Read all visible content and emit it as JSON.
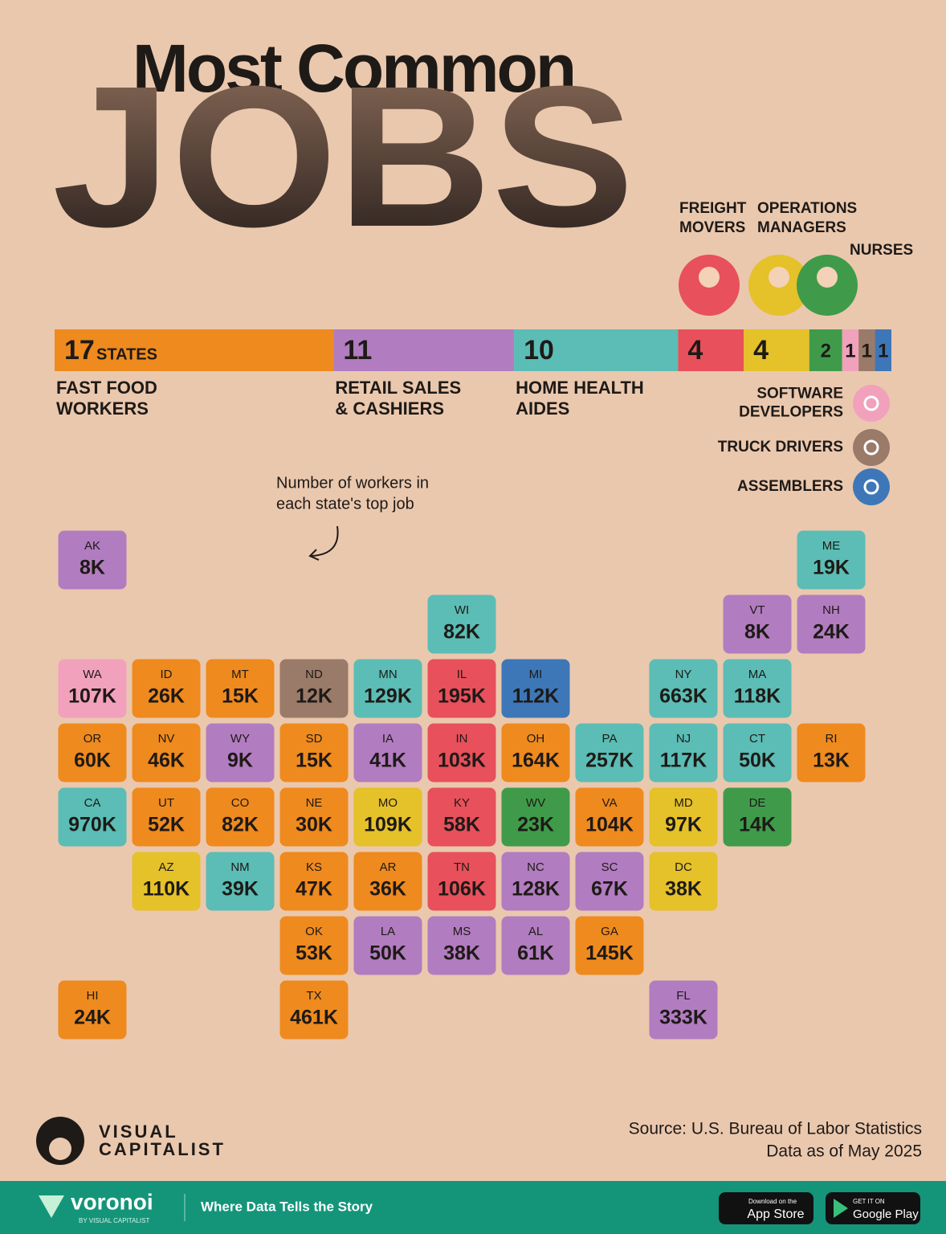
{
  "header": {
    "title_line1": "Most Common",
    "title_line2": "JOBS"
  },
  "count_unit": "STATES",
  "jobs": [
    {
      "label_lines": [
        "FAST FOOD",
        "WORKERS"
      ],
      "count": 17,
      "color": "#ef8a1e"
    },
    {
      "label_lines": [
        "RETAIL SALES",
        "& CASHIERS"
      ],
      "count": 11,
      "color": "#b27cc0"
    },
    {
      "label_lines": [
        "HOME HEALTH",
        "AIDES"
      ],
      "count": 10,
      "color": "#5bbdb5"
    },
    {
      "label_lines": [
        "FREIGHT",
        "MOVERS"
      ],
      "count": 4,
      "color": "#e8505b"
    },
    {
      "label_lines": [
        "OPERATIONS",
        "MANAGERS"
      ],
      "count": 4,
      "color": "#e5c12a"
    },
    {
      "label_lines": [
        "NURSES"
      ],
      "count": 2,
      "color": "#3f9b4a"
    },
    {
      "label_lines": [
        "SOFTWARE",
        "DEVELOPERS"
      ],
      "count": 1,
      "color": "#f2a1bd"
    },
    {
      "label_lines": [
        "TRUCK DRIVERS"
      ],
      "count": 1,
      "color": "#9a7a68"
    },
    {
      "label_lines": [
        "ASSEMBLERS"
      ],
      "count": 1,
      "color": "#3d77b8"
    }
  ],
  "annotation": [
    "Number of workers in",
    "each state's top job"
  ],
  "states": [
    {
      "abbr": "AK",
      "value": "8K",
      "color": "#b27cc0"
    },
    {
      "abbr": "ME",
      "value": "19K",
      "color": "#5bbdb5"
    },
    {
      "abbr": "WI",
      "value": "82K",
      "color": "#5bbdb5"
    },
    {
      "abbr": "VT",
      "value": "8K",
      "color": "#b27cc0"
    },
    {
      "abbr": "NH",
      "value": "24K",
      "color": "#b27cc0"
    },
    {
      "abbr": "WA",
      "value": "107K",
      "color": "#f2a1bd"
    },
    {
      "abbr": "ID",
      "value": "26K",
      "color": "#ef8a1e"
    },
    {
      "abbr": "MT",
      "value": "15K",
      "color": "#ef8a1e"
    },
    {
      "abbr": "ND",
      "value": "12K",
      "color": "#9a7a68"
    },
    {
      "abbr": "MN",
      "value": "129K",
      "color": "#5bbdb5"
    },
    {
      "abbr": "IL",
      "value": "195K",
      "color": "#e8505b"
    },
    {
      "abbr": "MI",
      "value": "112K",
      "color": "#3d77b8"
    },
    {
      "abbr": "NY",
      "value": "663K",
      "color": "#5bbdb5"
    },
    {
      "abbr": "MA",
      "value": "118K",
      "color": "#5bbdb5"
    },
    {
      "abbr": "OR",
      "value": "60K",
      "color": "#ef8a1e"
    },
    {
      "abbr": "NV",
      "value": "46K",
      "color": "#ef8a1e"
    },
    {
      "abbr": "WY",
      "value": "9K",
      "color": "#b27cc0"
    },
    {
      "abbr": "SD",
      "value": "15K",
      "color": "#ef8a1e"
    },
    {
      "abbr": "IA",
      "value": "41K",
      "color": "#b27cc0"
    },
    {
      "abbr": "IN",
      "value": "103K",
      "color": "#e8505b"
    },
    {
      "abbr": "OH",
      "value": "164K",
      "color": "#ef8a1e"
    },
    {
      "abbr": "PA",
      "value": "257K",
      "color": "#5bbdb5"
    },
    {
      "abbr": "NJ",
      "value": "117K",
      "color": "#5bbdb5"
    },
    {
      "abbr": "CT",
      "value": "50K",
      "color": "#5bbdb5"
    },
    {
      "abbr": "RI",
      "value": "13K",
      "color": "#ef8a1e"
    },
    {
      "abbr": "CA",
      "value": "970K",
      "color": "#5bbdb5"
    },
    {
      "abbr": "UT",
      "value": "52K",
      "color": "#ef8a1e"
    },
    {
      "abbr": "CO",
      "value": "82K",
      "color": "#ef8a1e"
    },
    {
      "abbr": "NE",
      "value": "30K",
      "color": "#ef8a1e"
    },
    {
      "abbr": "MO",
      "value": "109K",
      "color": "#e5c12a"
    },
    {
      "abbr": "KY",
      "value": "58K",
      "color": "#e8505b"
    },
    {
      "abbr": "WV",
      "value": "23K",
      "color": "#3f9b4a"
    },
    {
      "abbr": "VA",
      "value": "104K",
      "color": "#ef8a1e"
    },
    {
      "abbr": "MD",
      "value": "97K",
      "color": "#e5c12a"
    },
    {
      "abbr": "DE",
      "value": "14K",
      "color": "#3f9b4a"
    },
    {
      "abbr": "AZ",
      "value": "110K",
      "color": "#e5c12a"
    },
    {
      "abbr": "NM",
      "value": "39K",
      "color": "#5bbdb5"
    },
    {
      "abbr": "KS",
      "value": "47K",
      "color": "#ef8a1e"
    },
    {
      "abbr": "AR",
      "value": "36K",
      "color": "#ef8a1e"
    },
    {
      "abbr": "TN",
      "value": "106K",
      "color": "#e8505b"
    },
    {
      "abbr": "NC",
      "value": "128K",
      "color": "#b27cc0"
    },
    {
      "abbr": "SC",
      "value": "67K",
      "color": "#b27cc0"
    },
    {
      "abbr": "DC",
      "value": "38K",
      "color": "#e5c12a"
    },
    {
      "abbr": "OK",
      "value": "53K",
      "color": "#ef8a1e"
    },
    {
      "abbr": "LA",
      "value": "50K",
      "color": "#b27cc0"
    },
    {
      "abbr": "MS",
      "value": "38K",
      "color": "#b27cc0"
    },
    {
      "abbr": "AL",
      "value": "61K",
      "color": "#b27cc0"
    },
    {
      "abbr": "GA",
      "value": "145K",
      "color": "#ef8a1e"
    },
    {
      "abbr": "HI",
      "value": "24K",
      "color": "#ef8a1e"
    },
    {
      "abbr": "TX",
      "value": "461K",
      "color": "#ef8a1e"
    },
    {
      "abbr": "FL",
      "value": "333K",
      "color": "#b27cc0"
    }
  ],
  "source": [
    "Source: U.S. Bureau of Labor Statistics",
    "Data as of May 2025"
  ],
  "brand": {
    "logo": [
      "VISUAL",
      "CAPITALIST"
    ]
  },
  "footer": {
    "name": "voronoi",
    "by": "BY VISUAL CAPITALIST",
    "tagline": "Where Data Tells the Story",
    "app_store": [
      "Download on the",
      "App Store"
    ],
    "google_play": [
      "GET IT ON",
      "Google Play"
    ]
  }
}
